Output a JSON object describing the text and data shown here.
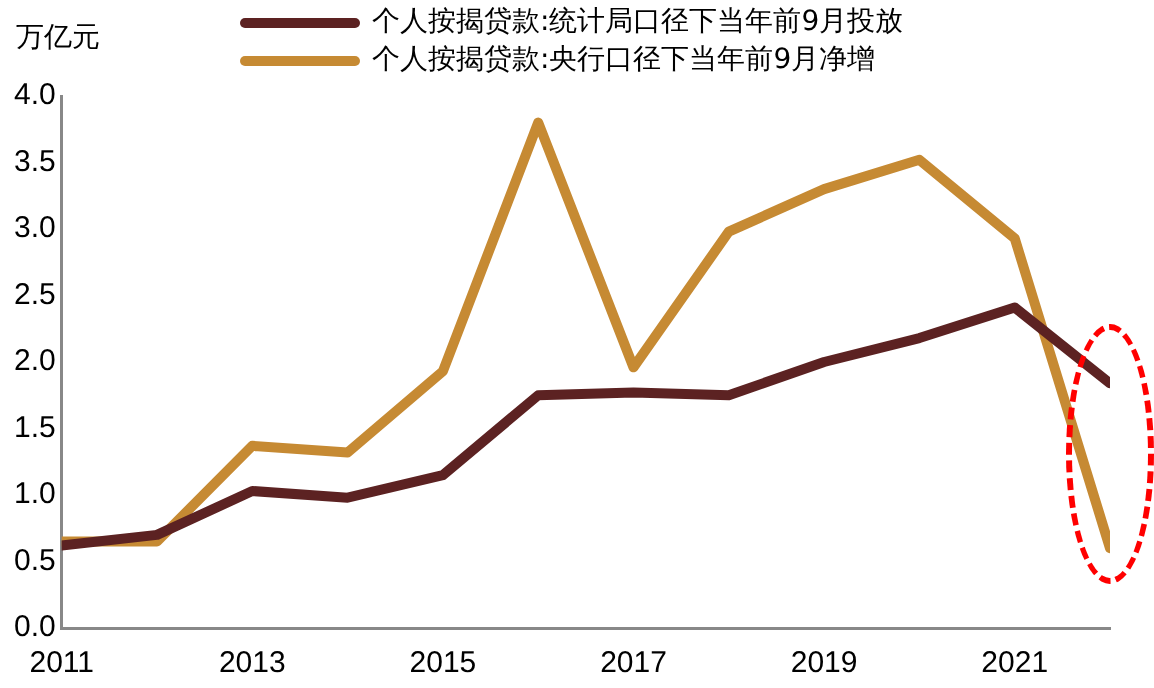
{
  "chart_data": {
    "type": "line",
    "ylabel": "万亿元",
    "x": [
      2011,
      2012,
      2013,
      2014,
      2015,
      2016,
      2017,
      2018,
      2019,
      2020,
      2021,
      2022
    ],
    "series": [
      {
        "name": "个人按揭贷款:统计局口径下当年前9月投放",
        "color": "#5c2222",
        "values": [
          0.62,
          0.7,
          1.03,
          0.98,
          1.15,
          1.75,
          1.77,
          1.75,
          2.0,
          2.18,
          2.41,
          1.84
        ]
      },
      {
        "name": "个人按揭贷款:央行口径下当年前9月净增",
        "color": "#c68a33",
        "values": [
          0.65,
          0.65,
          1.37,
          1.32,
          1.93,
          3.8,
          1.96,
          2.98,
          3.3,
          3.52,
          2.93,
          0.6
        ]
      }
    ],
    "xlim": [
      2011,
      2022
    ],
    "xticks": [
      2011,
      2013,
      2015,
      2017,
      2019,
      2021
    ],
    "ylim": [
      0,
      4
    ],
    "yticks": [
      {
        "value": 0,
        "label": "0.0"
      },
      0.5,
      {
        "value": 1,
        "label": "1.0"
      },
      1.5,
      {
        "value": 2,
        "label": "2.0"
      },
      2.5,
      {
        "value": 3,
        "label": "3.0"
      },
      3.5,
      {
        "value": 4,
        "label": "4.0"
      }
    ],
    "grid": false,
    "legend": "top",
    "marker": "none",
    "line_style": "solid"
  }
}
